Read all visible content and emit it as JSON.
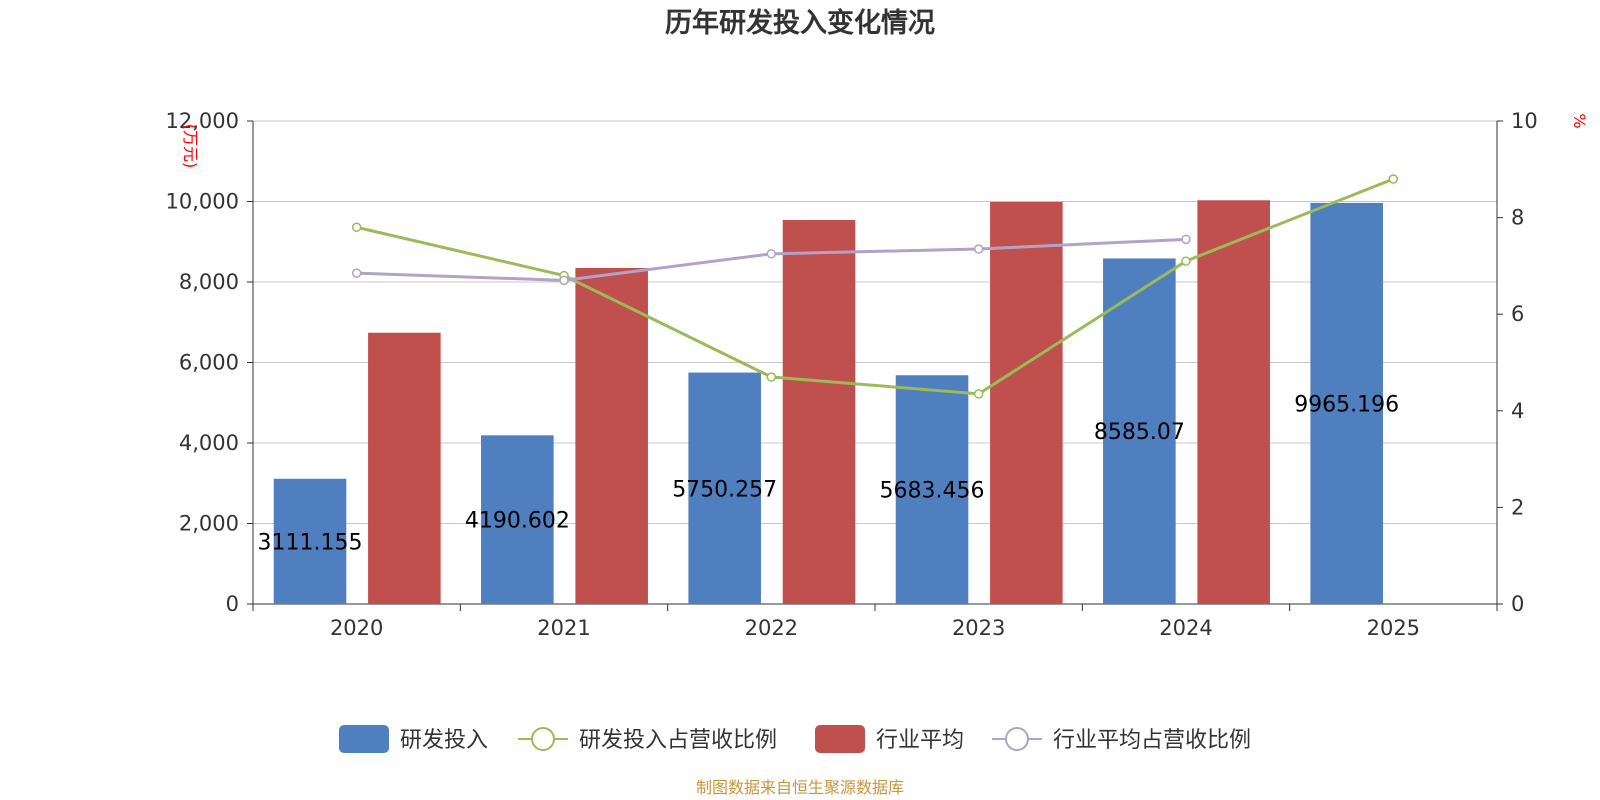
{
  "chart_data": {
    "type": "bar",
    "title": "历年研发投入变化情况",
    "categories": [
      "2020",
      "2021",
      "2022",
      "2023",
      "2024",
      "2025"
    ],
    "y_left": {
      "unit": "(万元)",
      "ylim": [
        0,
        12000
      ],
      "ticks": [
        "0",
        "2,000",
        "4,000",
        "6,000",
        "8,000",
        "10,000",
        "12,000"
      ]
    },
    "y_right": {
      "unit": "%",
      "ylim": [
        0,
        10
      ],
      "ticks": [
        "0",
        "2",
        "4",
        "6",
        "8",
        "10"
      ]
    },
    "grid": true,
    "legend_position": "bottom",
    "series": [
      {
        "name": "研发投入",
        "type": "bar",
        "axis": "left",
        "color": "#4f7fbf",
        "values": [
          3111.155,
          4190.602,
          5750.257,
          5683.456,
          8585.07,
          9965.196
        ],
        "labels": [
          "3111.155",
          "4190.602",
          "5750.257",
          "5683.456",
          "8585.07",
          "9965.196"
        ]
      },
      {
        "name": "研发投入占营收比例",
        "type": "line",
        "axis": "right",
        "color": "#9bbb59",
        "values": [
          7.8,
          6.8,
          4.7,
          4.35,
          7.1,
          8.8
        ]
      },
      {
        "name": "行业平均",
        "type": "bar",
        "axis": "left",
        "color": "#c0504d",
        "values": [
          6740,
          8350,
          9540,
          9990,
          10030,
          null
        ]
      },
      {
        "name": "行业平均占营收比例",
        "type": "line",
        "axis": "right",
        "color": "#b3a2c7",
        "values": [
          6.85,
          6.7,
          7.25,
          7.35,
          7.55,
          null
        ]
      }
    ],
    "source": "制图数据来自恒生聚源数据库"
  }
}
